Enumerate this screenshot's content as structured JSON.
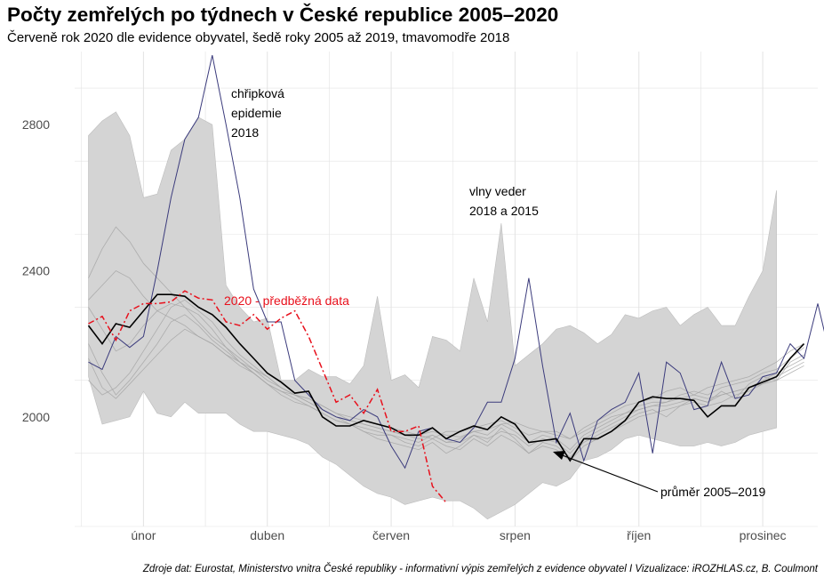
{
  "title": "Počty zemřelých po týdnech v České republice 2005–2020",
  "subtitle": "Červeně rok 2020 dle evidence obyvatel, šedě roky 2005 až 2019, tmavomodře 2018",
  "source": "Zdroje dat: Eurostat, Ministerstvo vnitra České republiky - informativní výpis zemřelých z evidence obyvatel I Vizualizace: iROZHLAS.cz, B. Coulmont",
  "colors": {
    "year2020": "#e8101c",
    "year2018": "#3b3b7c",
    "average": "#000000",
    "range_fill": "#d4d4d4",
    "other_years": "#a6a6a6",
    "grid": "#e3e3e3"
  },
  "chart_data": {
    "type": "line",
    "xlabel": "",
    "ylabel": "",
    "x_unit": "week",
    "xlim": [
      -1,
      53
    ],
    "ylim": [
      1700,
      3000
    ],
    "yticks": [
      2000,
      2400,
      2800
    ],
    "xticks": [
      {
        "week": 4,
        "label": "únor"
      },
      {
        "week": 13,
        "label": "duben"
      },
      {
        "week": 22,
        "label": "červen"
      },
      {
        "week": 31,
        "label": "srpen"
      },
      {
        "week": 40,
        "label": "říjen"
      },
      {
        "week": 49,
        "label": "prosinec"
      }
    ],
    "grid": true,
    "band_2005_2019": {
      "upper": [
        2770,
        2810,
        2835,
        2770,
        2600,
        2610,
        2730,
        2760,
        2820,
        2800,
        2360,
        2300,
        2260,
        2270,
        2100,
        2100,
        2130,
        2110,
        2110,
        2090,
        2140,
        2330,
        2100,
        2115,
        2080,
        2220,
        2210,
        2180,
        2380,
        2260,
        2530,
        2140,
        2170,
        2200,
        2240,
        2250,
        2230,
        2200,
        2225,
        2280,
        2270,
        2290,
        2300,
        2250,
        2280,
        2300,
        2250,
        2250,
        2330,
        2400,
        2620
      ],
      "lower": [
        2110,
        1980,
        1990,
        2000,
        2070,
        2010,
        2000,
        2040,
        2010,
        2010,
        2010,
        1980,
        1960,
        1960,
        1950,
        1940,
        1925,
        1890,
        1870,
        1840,
        1810,
        1790,
        1780,
        1760,
        1770,
        1780,
        1770,
        1770,
        1750,
        1720,
        1740,
        1760,
        1790,
        1820,
        1810,
        1830,
        1880,
        1890,
        1910,
        1940,
        1950,
        1940,
        1930,
        1920,
        1920,
        1930,
        1920,
        1930,
        1950,
        1960,
        1970
      ]
    },
    "series": [
      {
        "name": "2018",
        "values": [
          2150,
          2130,
          2220,
          2190,
          2220,
          2400,
          2600,
          2760,
          2820,
          2990,
          2800,
          2600,
          2350,
          2260,
          2260,
          2100,
          2060,
          2020,
          2000,
          1990,
          2020,
          2000,
          1920,
          1860,
          1960,
          1970,
          1940,
          1930,
          1970,
          2040,
          2040,
          2160,
          2380,
          2140,
          1930,
          2010,
          1880,
          1990,
          2020,
          2040,
          2120,
          1900,
          2150,
          2120,
          2020,
          2030,
          2150,
          2050,
          2060,
          2110,
          2120,
          2200,
          2160,
          2310,
          2150
        ]
      },
      {
        "name": "průměr 2005–2019",
        "values": [
          2250,
          2200,
          2255,
          2245,
          2290,
          2335,
          2335,
          2330,
          2300,
          2280,
          2245,
          2200,
          2160,
          2120,
          2095,
          2065,
          2070,
          2000,
          1975,
          1975,
          1990,
          1980,
          1970,
          1950,
          1950,
          1970,
          1940,
          1960,
          1975,
          1965,
          2000,
          1980,
          1930,
          1935,
          1940,
          1880,
          1940,
          1940,
          1960,
          1990,
          2040,
          2055,
          2050,
          2050,
          2045,
          2000,
          2030,
          2030,
          2080,
          2095,
          2110,
          2160,
          2200
        ]
      },
      {
        "name": "2020 - předběžná data",
        "values": [
          2255,
          2275,
          2210,
          2290,
          2310,
          2310,
          2315,
          2345,
          2325,
          2320,
          2260,
          2250,
          2280,
          2240,
          2270,
          2290,
          2220,
          2130,
          2040,
          2060,
          2010,
          2075,
          1960,
          1960,
          1975,
          1810,
          1765
        ]
      }
    ],
    "other_years": [
      [
        2300,
        2240,
        2180,
        2200,
        2250,
        2290,
        2310,
        2300,
        2280,
        2240,
        2190,
        2150,
        2130,
        2110,
        2080,
        2060,
        2050,
        2030,
        2010,
        1990,
        1980,
        1970,
        1960,
        1950,
        1950,
        1960,
        1950,
        1945,
        1960,
        1965,
        1980,
        1985,
        1970,
        1960,
        1950,
        1940,
        1960,
        1980,
        2000,
        2010,
        2020,
        2030,
        2040,
        2050,
        2060,
        2050,
        2060,
        2070,
        2080,
        2100,
        2120,
        2140,
        2160
      ],
      [
        2200,
        2120,
        2060,
        2100,
        2150,
        2200,
        2260,
        2280,
        2250,
        2210,
        2180,
        2150,
        2120,
        2090,
        2060,
        2040,
        2030,
        2010,
        1990,
        1980,
        1960,
        1940,
        1930,
        1920,
        1910,
        1930,
        1900,
        1920,
        1950,
        1930,
        1970,
        1940,
        1900,
        1930,
        1920,
        1890,
        1930,
        1950,
        1970,
        1990,
        2010,
        2020,
        2000,
        2030,
        2050,
        2040,
        2070,
        2050,
        2090,
        2110,
        2100,
        2150,
        2170
      ],
      [
        2320,
        2360,
        2400,
        2380,
        2330,
        2290,
        2270,
        2250,
        2220,
        2200,
        2170,
        2140,
        2120,
        2090,
        2070,
        2060,
        2050,
        2030,
        2010,
        2000,
        1990,
        1980,
        1970,
        1960,
        1950,
        1940,
        1960,
        1960,
        1970,
        1980,
        1990,
        1970,
        1950,
        1960,
        1960,
        1940,
        1970,
        1990,
        2010,
        2030,
        2040,
        2050,
        2070,
        2080,
        2060,
        2080,
        2090,
        2100,
        2110,
        2130,
        2150,
        2180,
        2200
      ],
      [
        2100,
        2060,
        2080,
        2120,
        2180,
        2240,
        2300,
        2320,
        2290,
        2260,
        2210,
        2170,
        2140,
        2110,
        2080,
        2060,
        2040,
        2020,
        2000,
        1980,
        1970,
        1960,
        1950,
        1930,
        1920,
        1940,
        1920,
        1910,
        1940,
        1920,
        1950,
        1930,
        1900,
        1920,
        1910,
        1880,
        1920,
        1940,
        1960,
        1980,
        2000,
        2010,
        2020,
        2030,
        2040,
        2030,
        2040,
        2060,
        2070,
        2090,
        2100,
        2120,
        2140
      ],
      [
        2380,
        2460,
        2520,
        2480,
        2420,
        2380,
        2340,
        2300,
        2260,
        2220,
        2190,
        2160,
        2130,
        2100,
        2080,
        2060,
        2040,
        2020,
        2000,
        1990,
        1980,
        1970,
        1960,
        1950,
        1940,
        1950,
        1930,
        1940,
        1960,
        1950,
        1980,
        1960,
        1930,
        1950,
        1940,
        1910,
        1950,
        1970,
        1990,
        2010,
        2030,
        2040,
        2040,
        2060,
        2070,
        2060,
        2080,
        2090,
        2100,
        2120,
        2130,
        2160,
        2190
      ],
      [
        2160,
        2080,
        2050,
        2090,
        2130,
        2170,
        2210,
        2240,
        2220,
        2200,
        2170,
        2150,
        2120,
        2090,
        2070,
        2050,
        2030,
        2010,
        1990,
        1980,
        1960,
        1950,
        1950,
        1940,
        1930,
        1950,
        1930,
        1930,
        1950,
        1940,
        1960,
        1950,
        1920,
        1940,
        1930,
        1900,
        1940,
        1960,
        1980,
        2000,
        2020,
        2030,
        2030,
        2040,
        2050,
        2040,
        2060,
        2070,
        2080,
        2090,
        2110,
        2130,
        2150
      ]
    ],
    "annotations": [
      {
        "label_lines": [
          "chřipková",
          "epidemie",
          "2018"
        ]
      },
      {
        "label_lines": [
          "vlny veder",
          "2018 a 2015"
        ]
      },
      {
        "label": "průměr 2005–2019"
      },
      {
        "label": "2020 - předběžná data"
      }
    ]
  }
}
